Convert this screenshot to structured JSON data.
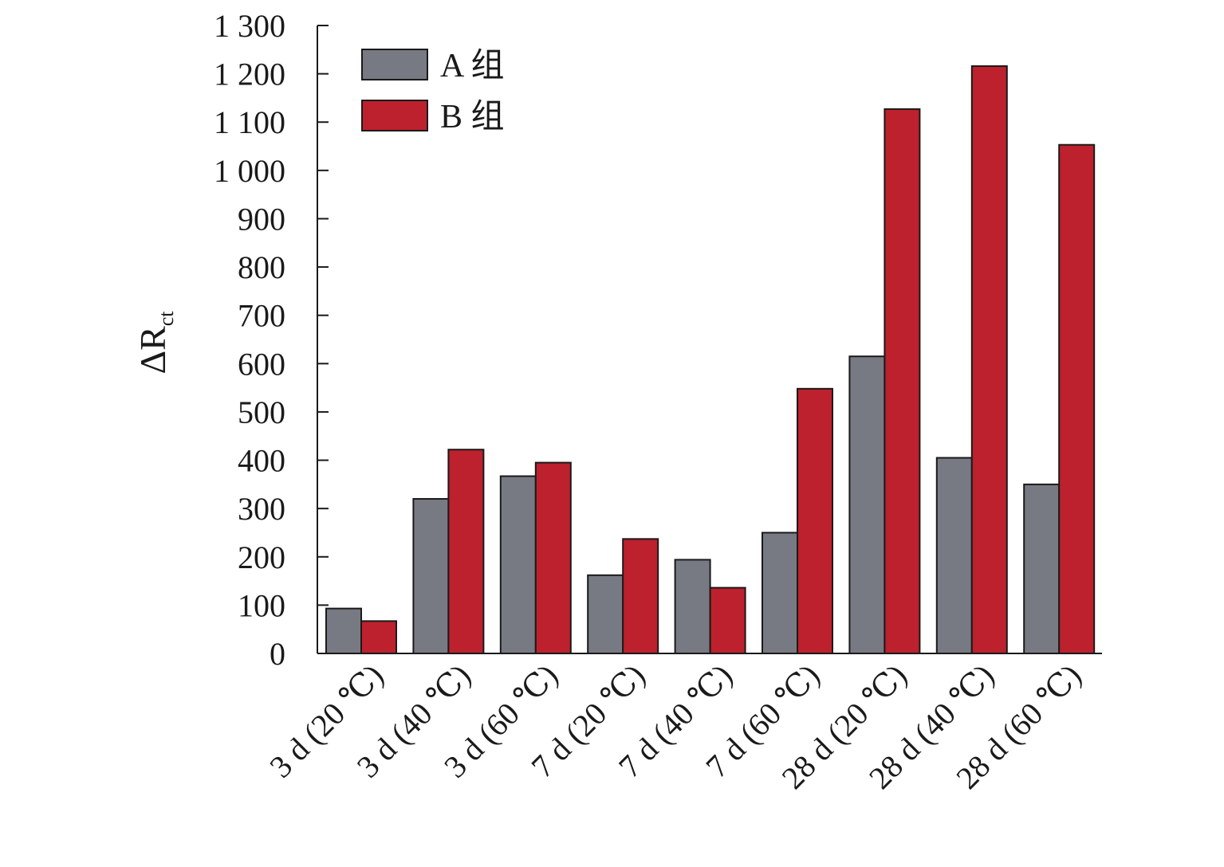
{
  "chart_data": {
    "type": "bar",
    "ylabel_symbol": "ΔR",
    "ylabel_subscript": "ct",
    "xlabel": "",
    "ylim": [
      0,
      1300
    ],
    "yticks": [
      0,
      100,
      200,
      300,
      400,
      500,
      600,
      700,
      800,
      900,
      1000,
      1100,
      1200,
      1300
    ],
    "ytick_labels": [
      "0",
      "100",
      "200",
      "300",
      "400",
      "500",
      "600",
      "700",
      "800",
      "900",
      "1 000",
      "1 100",
      "1 200",
      "1 300"
    ],
    "categories": [
      "3 d (20 ℃)",
      "3 d (40 ℃)",
      "3 d (60 ℃)",
      "7 d (20 ℃)",
      "7 d (40 ℃)",
      "7 d (60 ℃)",
      "28 d (20 ℃)",
      "28 d (40 ℃)",
      "28 d (60 ℃)"
    ],
    "series": [
      {
        "name": "A 组",
        "color": "#777a82",
        "values": [
          93,
          320,
          367,
          162,
          194,
          250,
          615,
          405,
          350
        ]
      },
      {
        "name": "B 组",
        "color": "#bc212d",
        "values": [
          67,
          422,
          395,
          237,
          136,
          548,
          1127,
          1216,
          1053
        ]
      }
    ],
    "legend_position": "top-left",
    "grid": false
  }
}
